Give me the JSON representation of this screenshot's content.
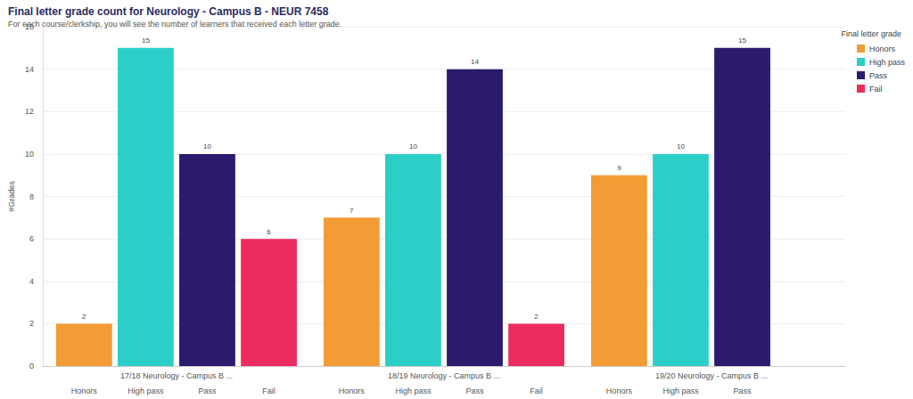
{
  "chart_data": {
    "type": "bar",
    "title": "Final letter grade count for Neurology - Campus B - NEUR 7458",
    "subtitle": "For each course/clerkship, you will see the number of learners that received each letter grade.",
    "y_label": "#Grades",
    "legend_title": "Final letter grade",
    "categories": [
      "17/18 Neurology - Campus B ...",
      "18/19 Neurology - Campus B ...",
      "19/20 Neurology - Campus B ..."
    ],
    "series": [
      {
        "name": "Honors",
        "color": "#f39b35",
        "values": [
          2,
          7,
          9
        ]
      },
      {
        "name": "High pass",
        "color": "#2ccfc7",
        "values": [
          15,
          10,
          10
        ]
      },
      {
        "name": "Pass",
        "color": "#2b1a6e",
        "values": [
          10,
          14,
          15
        ]
      },
      {
        "name": "Fail",
        "color": "#ec2c5e",
        "values": [
          6,
          2,
          null
        ]
      }
    ],
    "ylim": [
      0,
      16
    ],
    "yticks": [
      0,
      2,
      4,
      6,
      8,
      10,
      12,
      14,
      16
    ],
    "grid": true,
    "legend": "top-right",
    "data_labels": true
  }
}
